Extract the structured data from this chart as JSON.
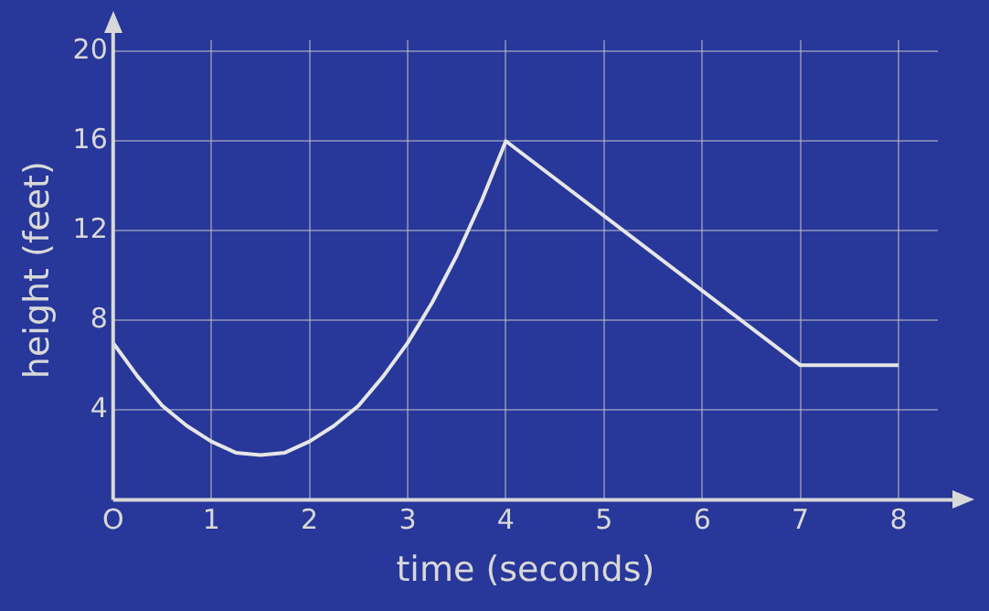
{
  "chart_data": {
    "type": "line",
    "xlabel": "time (seconds)",
    "ylabel": "height (feet)",
    "x": [
      0,
      0.25,
      0.5,
      0.75,
      1,
      1.25,
      1.5,
      1.75,
      2,
      2.25,
      2.5,
      2.75,
      3,
      3.25,
      3.5,
      3.75,
      4,
      7,
      8
    ],
    "series": [
      {
        "color": "#e6e6e6",
        "values": [
          7,
          5.5,
          4.2,
          3.3,
          2.6,
          2.1,
          2,
          2.1,
          2.6,
          3.3,
          4.2,
          5.5,
          7,
          8.8,
          10.9,
          13.3,
          16,
          6,
          6
        ]
      }
    ],
    "xlim": [
      0,
      8.4
    ],
    "ylim": [
      0,
      20.5
    ],
    "xticks": [
      {
        "value": 0,
        "label": "O"
      },
      1,
      2,
      3,
      4,
      5,
      6,
      7,
      8
    ],
    "yticks": [
      4,
      8,
      12,
      16,
      20
    ],
    "grid": true,
    "legend": false,
    "marker": "none",
    "line_style": "solid"
  }
}
